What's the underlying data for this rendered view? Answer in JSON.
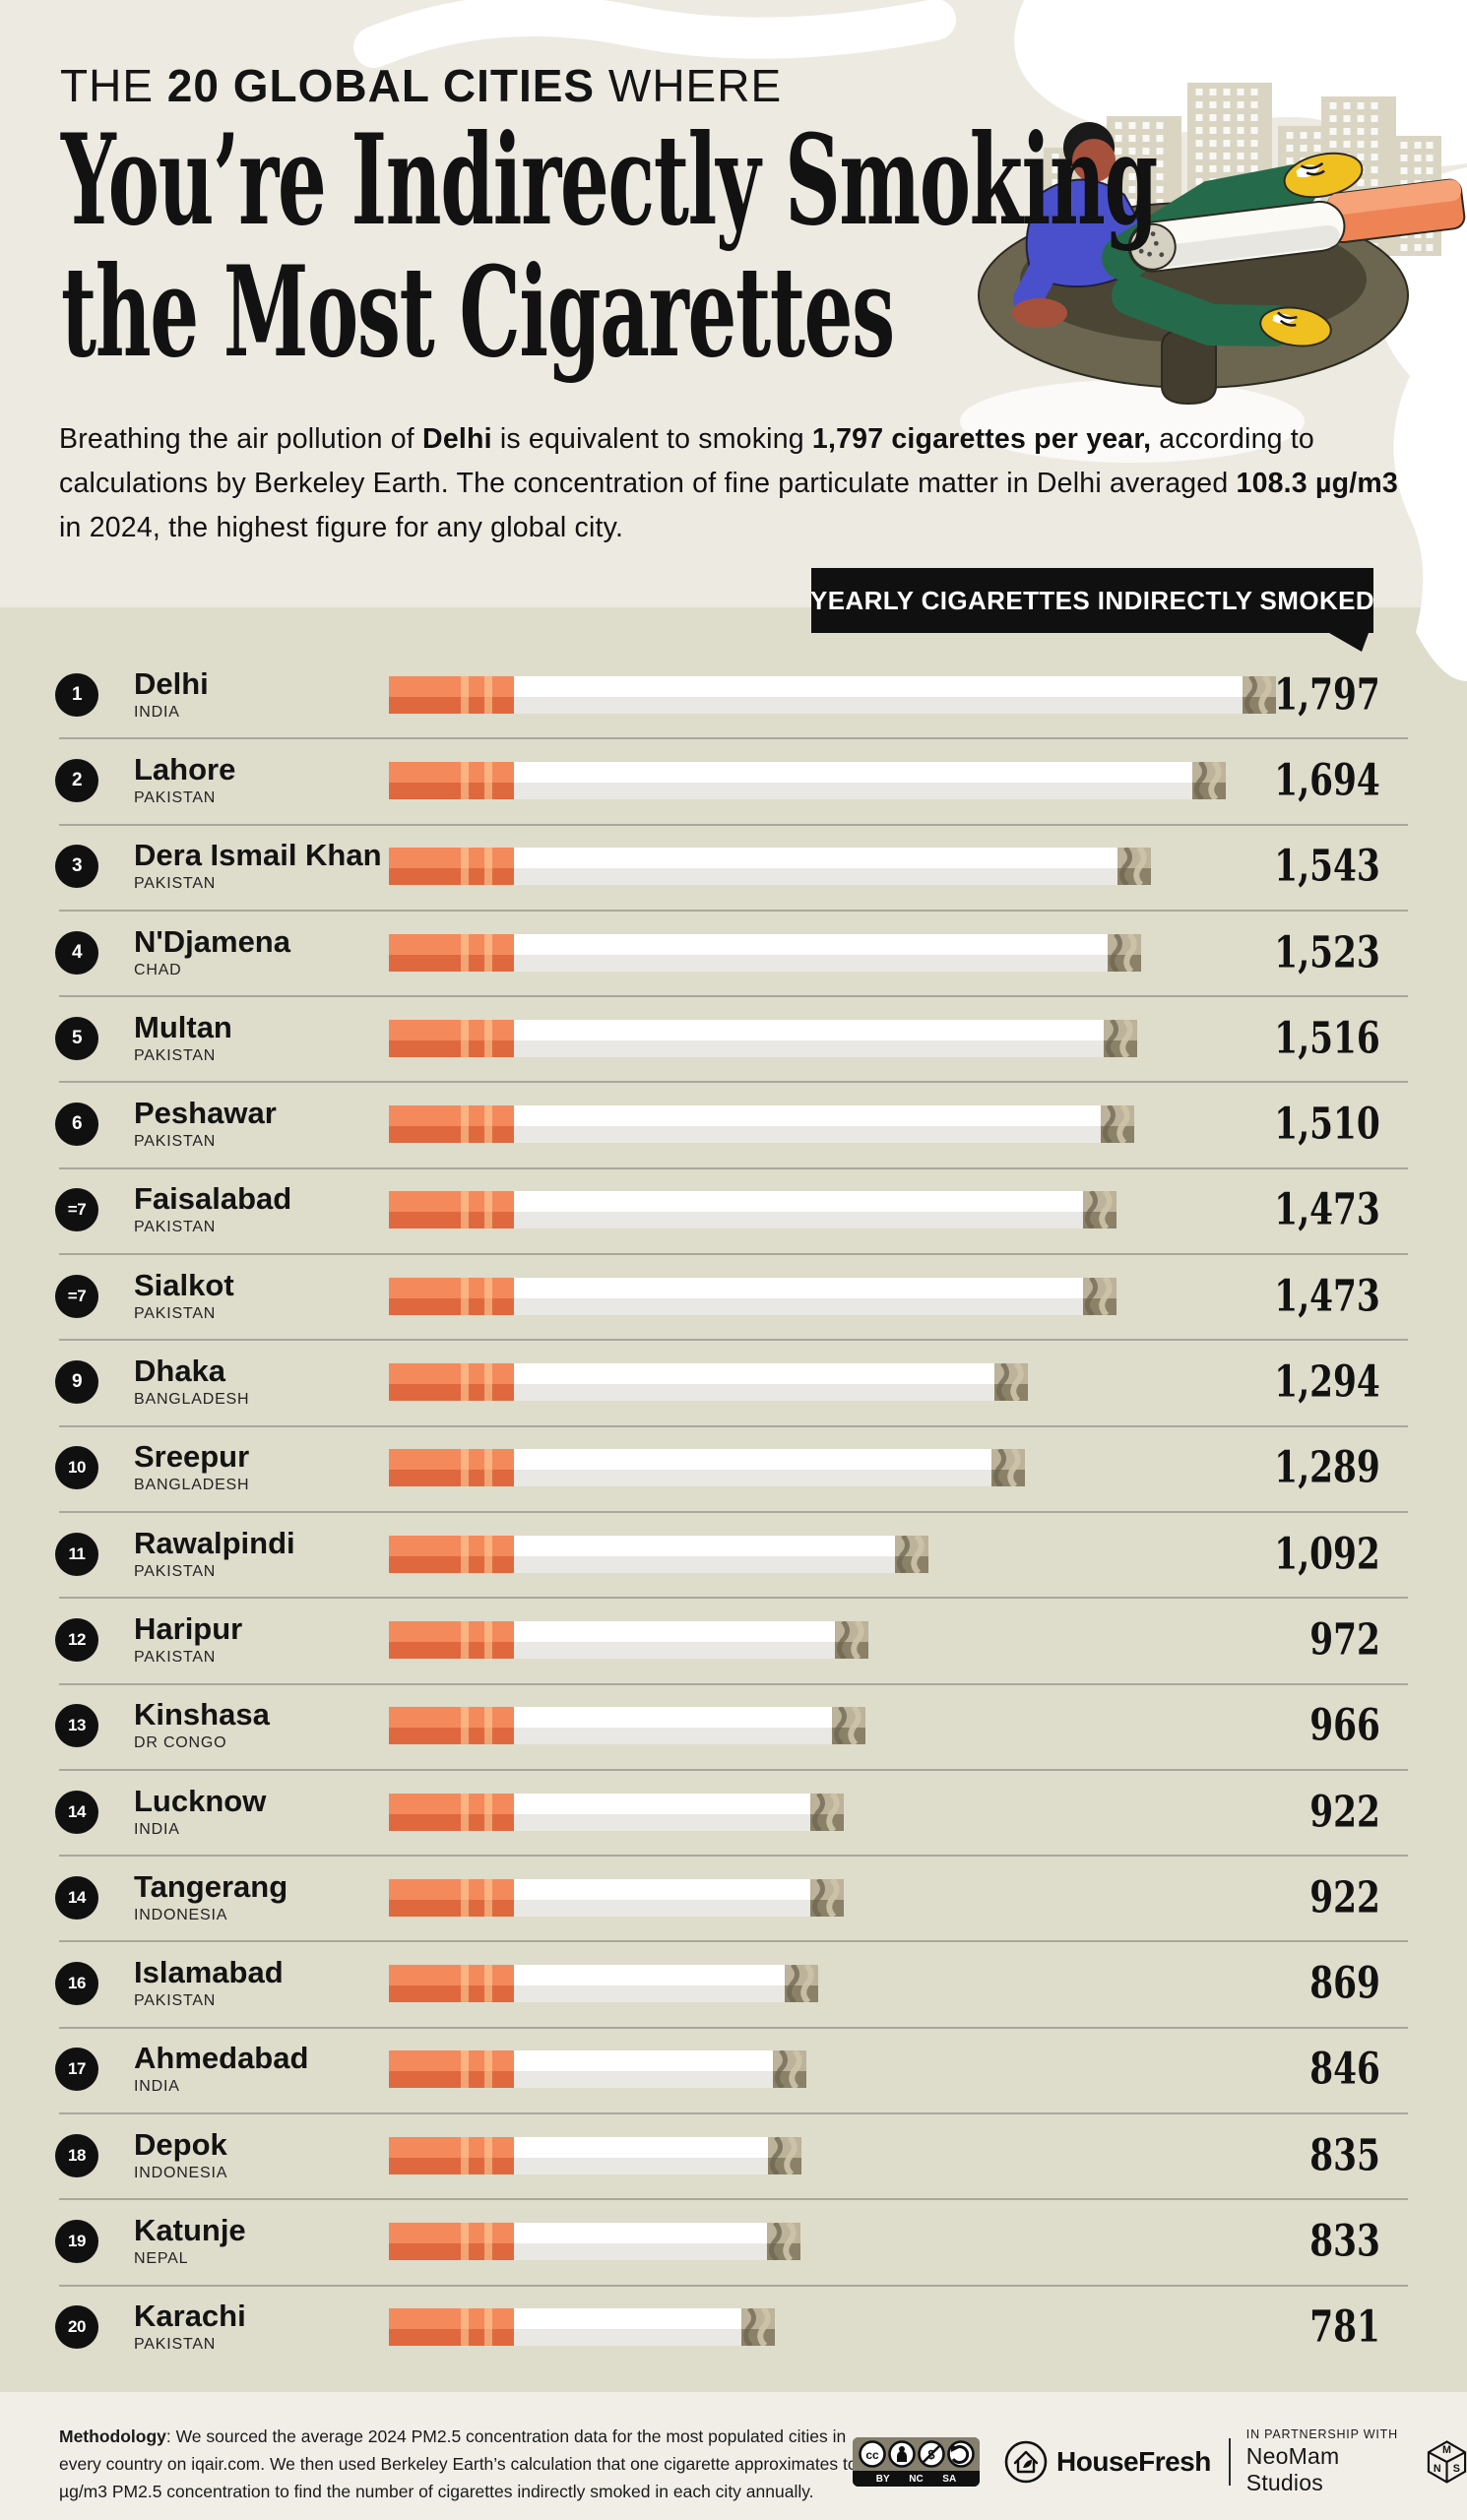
{
  "header": {
    "kicker_segments": [
      {
        "t": "THE ",
        "b": false
      },
      {
        "t": "20 GLOBAL CITIES",
        "b": true
      },
      {
        "t": " WHERE",
        "b": false
      }
    ],
    "title_line1": "You’re Indirectly Smoking",
    "title_line2": "the Most Cigarettes",
    "intro_segments": [
      {
        "t": "Breathing the air pollution of ",
        "b": false
      },
      {
        "t": "Delhi",
        "b": true
      },
      {
        "t": " is equivalent to smoking ",
        "b": false
      },
      {
        "t": "1,797 cigarettes per year,",
        "b": true
      },
      {
        "t": " according to calculations by Berkeley Earth. The concentration of fine particulate matter in Delhi averaged ",
        "b": false
      },
      {
        "t": "108.3 µg/m3",
        "b": true
      },
      {
        "t": " in 2024, the highest figure for any global city.",
        "b": false
      }
    ]
  },
  "badge": {
    "label": "YEARLY CIGARETTES INDIRECTLY SMOKED"
  },
  "ranking": {
    "rows": [
      {
        "rank": "1",
        "city": "Delhi",
        "country": "INDIA",
        "value": 1797,
        "value_label": "1,797"
      },
      {
        "rank": "2",
        "city": "Lahore",
        "country": "PAKISTAN",
        "value": 1694,
        "value_label": "1,694"
      },
      {
        "rank": "3",
        "city": "Dera Ismail Khan",
        "country": "PAKISTAN",
        "value": 1543,
        "value_label": "1,543"
      },
      {
        "rank": "4",
        "city": "N'Djamena",
        "country": "CHAD",
        "value": 1523,
        "value_label": "1,523"
      },
      {
        "rank": "5",
        "city": "Multan",
        "country": "PAKISTAN",
        "value": 1516,
        "value_label": "1,516"
      },
      {
        "rank": "6",
        "city": "Peshawar",
        "country": "PAKISTAN",
        "value": 1510,
        "value_label": "1,510"
      },
      {
        "rank": "=7",
        "city": "Faisalabad",
        "country": "PAKISTAN",
        "value": 1473,
        "value_label": "1,473"
      },
      {
        "rank": "=7",
        "city": "Sialkot",
        "country": "PAKISTAN",
        "value": 1473,
        "value_label": "1,473"
      },
      {
        "rank": "9",
        "city": "Dhaka",
        "country": "BANGLADESH",
        "value": 1294,
        "value_label": "1,294"
      },
      {
        "rank": "10",
        "city": "Sreepur",
        "country": "BANGLADESH",
        "value": 1289,
        "value_label": "1,289"
      },
      {
        "rank": "11",
        "city": "Rawalpindi",
        "country": "PAKISTAN",
        "value": 1092,
        "value_label": "1,092"
      },
      {
        "rank": "12",
        "city": "Haripur",
        "country": "PAKISTAN",
        "value": 972,
        "value_label": "972"
      },
      {
        "rank": "13",
        "city": "Kinshasa",
        "country": "DR CONGO",
        "value": 966,
        "value_label": "966"
      },
      {
        "rank": "14",
        "city": "Lucknow",
        "country": "INDIA",
        "value": 922,
        "value_label": "922"
      },
      {
        "rank": "14",
        "city": "Tangerang",
        "country": "INDONESIA",
        "value": 922,
        "value_label": "922"
      },
      {
        "rank": "16",
        "city": "Islamabad",
        "country": "PAKISTAN",
        "value": 869,
        "value_label": "869"
      },
      {
        "rank": "17",
        "city": "Ahmedabad",
        "country": "INDIA",
        "value": 846,
        "value_label": "846"
      },
      {
        "rank": "18",
        "city": "Depok",
        "country": "INDONESIA",
        "value": 835,
        "value_label": "835"
      },
      {
        "rank": "19",
        "city": "Katunje",
        "country": "NEPAL",
        "value": 833,
        "value_label": "833"
      },
      {
        "rank": "20",
        "city": "Karachi",
        "country": "PAKISTAN",
        "value": 781,
        "value_label": "781"
      }
    ]
  },
  "chart_data": {
    "type": "bar",
    "title": "The 20 Global Cities Where You're Indirectly Smoking the Most Cigarettes",
    "ylabel": "Yearly cigarettes indirectly smoked",
    "categories": [
      "Delhi",
      "Lahore",
      "Dera Ismail Khan",
      "N'Djamena",
      "Multan",
      "Peshawar",
      "Faisalabad",
      "Sialkot",
      "Dhaka",
      "Sreepur",
      "Rawalpindi",
      "Haripur",
      "Kinshasa",
      "Lucknow",
      "Tangerang",
      "Islamabad",
      "Ahmedabad",
      "Depok",
      "Katunje",
      "Karachi"
    ],
    "countries": [
      "India",
      "Pakistan",
      "Pakistan",
      "Chad",
      "Pakistan",
      "Pakistan",
      "Pakistan",
      "Pakistan",
      "Bangladesh",
      "Bangladesh",
      "Pakistan",
      "Pakistan",
      "DR Congo",
      "India",
      "Indonesia",
      "Pakistan",
      "India",
      "Indonesia",
      "Nepal",
      "Pakistan"
    ],
    "ranks": [
      "1",
      "2",
      "3",
      "4",
      "5",
      "6",
      "=7",
      "=7",
      "9",
      "10",
      "11",
      "12",
      "13",
      "14",
      "14",
      "16",
      "17",
      "18",
      "19",
      "20"
    ],
    "values": [
      1797,
      1694,
      1543,
      1523,
      1516,
      1510,
      1473,
      1473,
      1294,
      1289,
      1092,
      972,
      966,
      922,
      922,
      869,
      846,
      835,
      833,
      781
    ],
    "xlim": [
      0,
      1797
    ],
    "grid": false,
    "legend": "none"
  },
  "footer": {
    "methodology_segments": [
      {
        "t": "Methodology",
        "b": true
      },
      {
        "t": ": We sourced the average 2024 PM2.5 concentration data for the most populated cities in every country on iqair.com. We then used Berkeley Earth’s calculation that one cigarette approximates to 22 µg/m3 PM2.5 concentration to find the number of cigarettes indirectly smoked in each city annually.",
        "b": false
      }
    ],
    "cc_labels": [
      "BY",
      "NC",
      "SA"
    ],
    "housefresh_name": "HouseFresh",
    "partnership_kicker": "IN PARTNERSHIP WITH",
    "partnership_name": "NeoMam Studios"
  },
  "colors": {
    "bg_top": "#EDEAE2",
    "bg_list": "#DEDCCB",
    "bg_footer": "#F0EEE7",
    "badge_bg": "#101010",
    "filter_orange_top": "#F4895C",
    "filter_orange_bottom": "#E0683E",
    "cigarette_white": "#FFFFFF",
    "cigarette_shadow": "#E9E8E4",
    "ash_light": "#BDB29A",
    "ash_dark": "#8A8168",
    "divider": "#A9A79A"
  }
}
